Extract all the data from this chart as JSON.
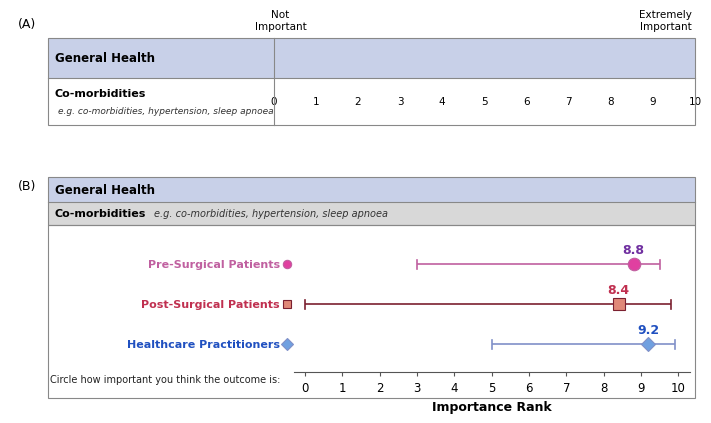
{
  "panel_A": {
    "label": "(A)",
    "category": "General Health",
    "row_label": "Co-morbidities",
    "row_sublabel": "e.g. co-morbidities, hypertension, sleep apnoea",
    "scale_ticks": [
      0,
      1,
      2,
      3,
      4,
      5,
      6,
      7,
      8,
      9,
      10
    ],
    "header_left": "Not\nImportant",
    "header_right": "Extremely\nImportant"
  },
  "panel_B": {
    "label": "(B)",
    "category": "General Health",
    "row_label": "Co-morbidities",
    "row_sublabel": "e.g. co-morbidities, hypertension, sleep apnoea",
    "groups": [
      {
        "name": "Pre-Surgical Patients",
        "mean": 8.8,
        "ci_low": 3.0,
        "ci_high": 9.5,
        "color_line": "#c060a0",
        "color_marker": "#e040a0",
        "marker": "o",
        "label_color": "#c060a0",
        "value_color": "#7030a0",
        "y": 3
      },
      {
        "name": "Post-Surgical Patients",
        "mean": 8.4,
        "ci_low": 0.0,
        "ci_high": 9.8,
        "color_line": "#7b2030",
        "color_marker": "#e08878",
        "marker": "s",
        "label_color": "#c03050",
        "value_color": "#c03050",
        "y": 2
      },
      {
        "name": "Healthcare Practitioners",
        "mean": 9.2,
        "ci_low": 5.0,
        "ci_high": 9.9,
        "color_line": "#8090c8",
        "color_marker": "#70a0e0",
        "marker": "D",
        "label_color": "#2050c0",
        "value_color": "#2050c0",
        "y": 1
      }
    ],
    "xlabel": "Importance Rank",
    "bottom_label": "Circle how important you think the outcome is:",
    "scale_min": 0,
    "scale_max": 10
  },
  "bg_header_color": "#c8d0e8",
  "bg_row_color": "#d8d8d8",
  "table_border_color": "#888888",
  "not_important_label": "Not\nImportant",
  "extremely_important_label": "Extremely\nImportant"
}
